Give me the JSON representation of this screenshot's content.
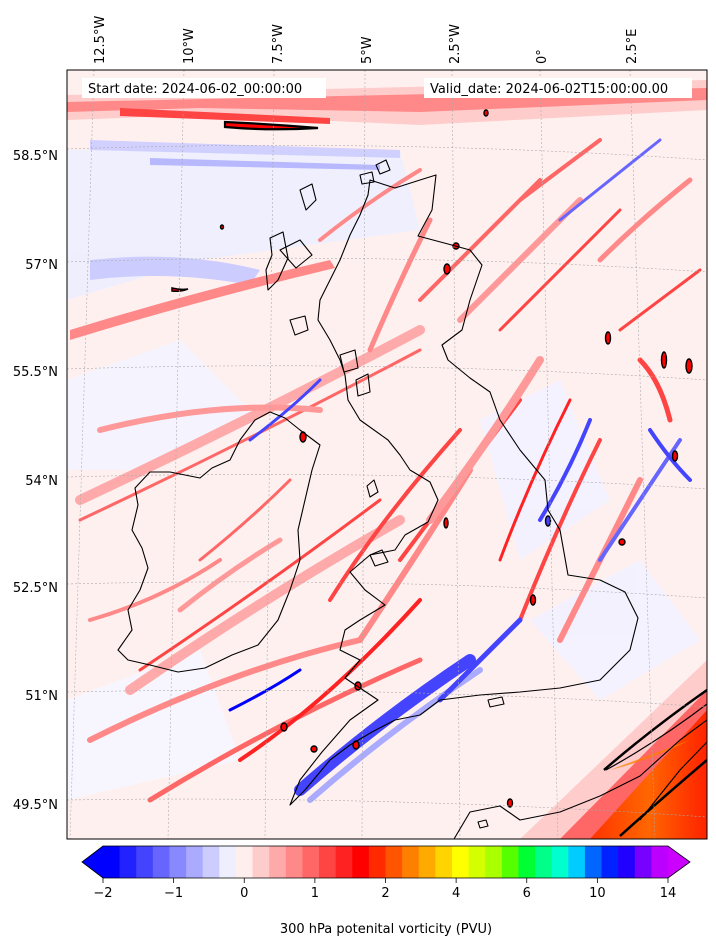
{
  "map": {
    "annotations": {
      "start_date": "Start date: 2024-06-02_00:00:00",
      "valid_date": "Valid_date: 2024-06-02T15:00:00.00"
    },
    "longitude_labels": [
      "12.5°W",
      "10°W",
      "7.5°W",
      "5°W",
      "2.5°W",
      "0°",
      "2.5°E"
    ],
    "latitude_labels": [
      "58.5°N",
      "57°N",
      "55.5°N",
      "54°N",
      "52.5°N",
      "51°N",
      "49.5°N"
    ],
    "colors": {
      "coast": "#000000",
      "gridline": "#aaaaaa"
    }
  },
  "colorbar": {
    "label": "300 hPa potenital vorticity (PVU)",
    "tick_labels": [
      "−2",
      "−1",
      "0",
      "1",
      "2",
      "4",
      "6",
      "10",
      "14"
    ],
    "colors": [
      "#0000ff",
      "#2222ff",
      "#4444ff",
      "#6666ff",
      "#8888ff",
      "#aaaaff",
      "#ccccff",
      "#eeeeff",
      "#ffeeee",
      "#ffcccc",
      "#ffaaaa",
      "#ff8888",
      "#ff6666",
      "#ff4444",
      "#ff2222",
      "#ff0000",
      "#ff2a00",
      "#ff5500",
      "#ff8000",
      "#ffaa00",
      "#ffd400",
      "#ffff00",
      "#d4ff00",
      "#aaff00",
      "#55ff00",
      "#00ff33",
      "#00ff88",
      "#00ffcc",
      "#00ccff",
      "#0066ff",
      "#0022ff",
      "#2200ff",
      "#7700ff",
      "#bb00ff"
    ],
    "extend_low": "#0000ff",
    "extend_high": "#cc00ff"
  }
}
